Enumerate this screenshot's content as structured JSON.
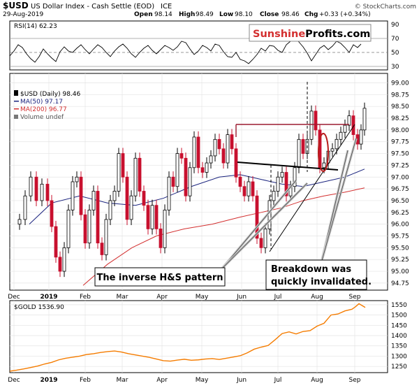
{
  "header": {
    "symbol": "$USD",
    "description": "US Dollar Index - Cash Settle (EOD)",
    "exchange": "ICE",
    "stockcharts": "© StockCharts.com",
    "date": "29-Aug-2019",
    "open_label": "Open",
    "open": "98.14",
    "high_label": "High",
    "high": "98.49",
    "low_label": "Low",
    "low": "98.10",
    "close_label": "Close",
    "close": "98.46",
    "chg_label": "Chg",
    "chg": "+0.33 (+0.34%)"
  },
  "logo": {
    "part1": "Sunshine",
    "part2": "Profits.com"
  },
  "colors": {
    "candle_up": "#000000",
    "candle_down": "#c8102e",
    "ma50": "#1a237e",
    "ma200": "#d32f2f",
    "gold": "#f57c00",
    "logo_red": "#d32f2f",
    "annotation": "#000000"
  },
  "annotations": {
    "hs_label": "The inverse H&S pattern",
    "breakdown_line1": "Breakdown was",
    "breakdown_line2": "quickly invalidated."
  },
  "chart_data": [
    {
      "type": "line",
      "panel": "rsi",
      "legend": [
        "RSI(14) 62.23"
      ],
      "ylim": [
        25,
        95
      ],
      "y_ticks": [
        30,
        50,
        70,
        90
      ],
      "reference_lines": [
        30,
        50,
        70
      ],
      "x": [
        0,
        6,
        12,
        18,
        24,
        30,
        36,
        42,
        48,
        54,
        60,
        66,
        72,
        78,
        84,
        90,
        96,
        102,
        108,
        114,
        120,
        126,
        132,
        138,
        144,
        150,
        156,
        162,
        168,
        174,
        180,
        186,
        192,
        198,
        204,
        210,
        216,
        222,
        228,
        234,
        240,
        246,
        252,
        258,
        264,
        270,
        276,
        282,
        288,
        294,
        300,
        306,
        312,
        318,
        324,
        330,
        336,
        342,
        348,
        354,
        360,
        366,
        372,
        378,
        384,
        390,
        396,
        402,
        408,
        414,
        420,
        426,
        432,
        438,
        444,
        450,
        456,
        462,
        468,
        474,
        480,
        486,
        492,
        498,
        503
      ],
      "values": [
        45,
        52,
        61,
        57,
        48,
        41,
        36,
        44,
        55,
        48,
        42,
        37,
        51,
        58,
        52,
        50,
        56,
        61,
        54,
        48,
        55,
        61,
        57,
        50,
        44,
        52,
        58,
        62,
        56,
        48,
        43,
        50,
        56,
        60,
        53,
        48,
        54,
        60,
        57,
        53,
        58,
        66,
        64,
        55,
        47,
        52,
        60,
        57,
        52,
        62,
        60,
        51,
        44,
        43,
        50,
        40,
        38,
        34,
        40,
        47,
        56,
        52,
        60,
        59,
        53,
        50,
        61,
        66,
        72,
        65,
        58,
        49,
        38,
        47,
        56,
        60,
        54,
        59,
        66,
        63,
        57,
        50,
        61,
        57,
        62
      ]
    },
    {
      "type": "line",
      "panel": "price",
      "title": "$USD US Dollar Index - Cash Settle (EOD) ICE",
      "legend": [
        "$USD (Daily) 98.46",
        "MA(50) 97.17",
        "MA(200) 96.77",
        "Volume undef"
      ],
      "ylim": [
        94.6,
        99.2
      ],
      "y_ticks": [
        "94.75",
        "95.00",
        "95.25",
        "95.50",
        "95.75",
        "96.00",
        "96.25",
        "96.50",
        "96.75",
        "97.00",
        "97.25",
        "97.50",
        "97.75",
        "98.00",
        "98.25",
        "98.50",
        "98.75",
        "99.00"
      ],
      "x_ticks": [
        "Dec",
        "2019",
        "Feb",
        "Mar",
        "Apr",
        "May",
        "Jun",
        "Jul",
        "Aug",
        "Sep"
      ],
      "x_tick_positions": [
        20,
        70,
        122,
        175,
        232,
        289,
        346,
        398,
        454,
        508
      ],
      "series": [
        {
          "name": "$USD (Daily) 98.46",
          "x": [
            14,
            22,
            30,
            38,
            46,
            54,
            60,
            66,
            72,
            78,
            84,
            90,
            96,
            102,
            108,
            114,
            120,
            126,
            132,
            138,
            144,
            150,
            156,
            162,
            168,
            174,
            180,
            186,
            192,
            198,
            204,
            210,
            216,
            222,
            228,
            234,
            240,
            246,
            252,
            258,
            264,
            270,
            276,
            282,
            288,
            294,
            300,
            306,
            312,
            318,
            324,
            330,
            336,
            342,
            348,
            354,
            360,
            366,
            372,
            378,
            384,
            390,
            396,
            402,
            408,
            414,
            420,
            426,
            432,
            438,
            444,
            450,
            456,
            462,
            468,
            474,
            480,
            486,
            492,
            498,
            503,
            508
          ],
          "values": [
            96.1,
            96.6,
            97.0,
            96.5,
            96.85,
            96.5,
            95.95,
            95.3,
            95.0,
            95.5,
            96.3,
            96.9,
            97.0,
            96.2,
            95.6,
            96.3,
            96.7,
            95.6,
            95.35,
            96.1,
            96.5,
            96.7,
            97.5,
            97.0,
            96.1,
            96.6,
            97.4,
            96.7,
            96.4,
            95.9,
            96.4,
            95.9,
            95.5,
            96.3,
            97.0,
            96.8,
            97.5,
            97.4,
            96.6,
            97.2,
            97.85,
            97.2,
            97.1,
            97.3,
            97.45,
            97.8,
            97.6,
            97.3,
            97.9,
            97.6,
            97.0,
            96.8,
            96.6,
            96.9,
            96.6,
            95.7,
            95.5,
            95.9,
            96.5,
            96.7,
            97.0,
            97.1,
            96.6,
            96.8,
            97.2,
            97.8,
            97.5,
            97.8,
            98.4,
            98.0,
            97.2,
            97.3,
            97.55,
            97.6,
            97.8,
            97.95,
            98.1,
            98.3,
            97.9,
            97.7,
            98.0,
            98.46
          ]
        },
        {
          "name": "MA(50) 97.17",
          "x": [
            28,
            60,
            100,
            140,
            180,
            220,
            260,
            300,
            330,
            360,
            390,
            420,
            450,
            480,
            508
          ],
          "values": [
            96.0,
            96.45,
            96.6,
            96.45,
            96.4,
            96.55,
            96.8,
            97.0,
            97.05,
            96.95,
            96.85,
            96.8,
            96.9,
            97.0,
            97.17
          ]
        },
        {
          "name": "MA(200) 96.77",
          "x": [
            105,
            140,
            175,
            210,
            250,
            290,
            330,
            360,
            390,
            420,
            450,
            480,
            508
          ],
          "values": [
            94.7,
            95.15,
            95.5,
            95.75,
            95.9,
            96.0,
            96.15,
            96.25,
            96.35,
            96.5,
            96.6,
            96.68,
            96.77
          ]
        }
      ]
    },
    {
      "type": "line",
      "panel": "gold",
      "legend": [
        "$GOLD 1536.90"
      ],
      "ylim": [
        1220,
        1570
      ],
      "y_ticks": [
        1250,
        1300,
        1350,
        1400,
        1450,
        1500,
        1550
      ],
      "x_ticks": [
        "Dec",
        "2019",
        "Feb",
        "Mar",
        "Apr",
        "May",
        "Jun",
        "Jul",
        "Aug",
        "Sep"
      ],
      "x_tick_positions": [
        20,
        70,
        122,
        175,
        232,
        289,
        346,
        398,
        454,
        508
      ],
      "series": [
        {
          "name": "$GOLD 1536.90",
          "x": [
            0,
            10,
            20,
            30,
            40,
            50,
            60,
            70,
            80,
            90,
            100,
            110,
            120,
            130,
            140,
            150,
            160,
            170,
            180,
            190,
            200,
            210,
            220,
            230,
            240,
            250,
            260,
            270,
            280,
            290,
            300,
            310,
            320,
            330,
            340,
            350,
            360,
            370,
            380,
            390,
            400,
            410,
            420,
            430,
            440,
            450,
            460,
            470,
            480,
            490,
            495,
            500,
            505,
            509
          ],
          "values": [
            1227,
            1232,
            1238,
            1245,
            1252,
            1262,
            1270,
            1282,
            1290,
            1295,
            1300,
            1308,
            1312,
            1318,
            1322,
            1325,
            1320,
            1312,
            1306,
            1300,
            1294,
            1286,
            1278,
            1276,
            1281,
            1285,
            1280,
            1282,
            1286,
            1288,
            1284,
            1290,
            1296,
            1302,
            1316,
            1334,
            1344,
            1352,
            1380,
            1410,
            1418,
            1408,
            1420,
            1424,
            1446,
            1460,
            1500,
            1505,
            1520,
            1528,
            1540,
            1555,
            1545,
            1537
          ]
        }
      ]
    }
  ]
}
